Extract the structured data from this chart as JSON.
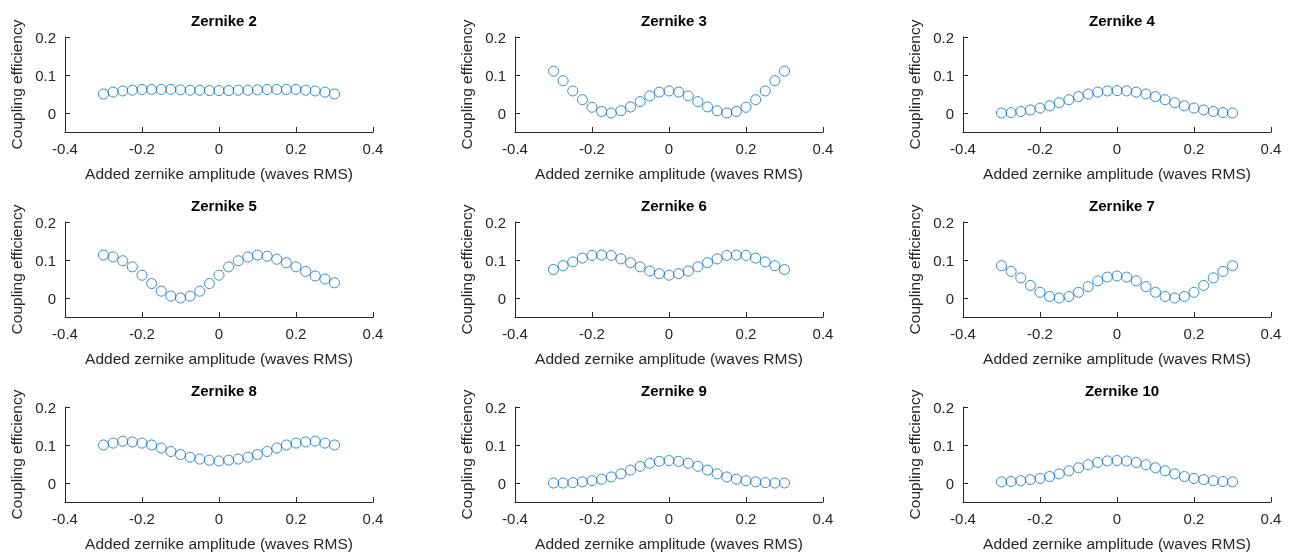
{
  "chart_data": [
    {
      "type": "scatter",
      "title": "Zernike 2",
      "xlabel": "Added zernike amplitude (waves RMS)",
      "ylabel": "Coupling efficiency",
      "color": "#0072bd",
      "marker": "circle",
      "grid": false,
      "xlim": [
        -0.4,
        0.4
      ],
      "ylim": [
        -0.05,
        0.2
      ],
      "xticks": [
        -0.4,
        -0.2,
        0,
        0.2,
        0.4
      ],
      "yticks": [
        0,
        0.1,
        0.2
      ],
      "x": [
        -0.3,
        -0.275,
        -0.25,
        -0.225,
        -0.2,
        -0.175,
        -0.15,
        -0.125,
        -0.1,
        -0.075,
        -0.05,
        -0.025,
        0,
        0.025,
        0.05,
        0.075,
        0.1,
        0.125,
        0.15,
        0.175,
        0.2,
        0.225,
        0.25,
        0.275,
        0.3
      ],
      "values": [
        0.05,
        0.055,
        0.058,
        0.06,
        0.062,
        0.062,
        0.062,
        0.062,
        0.061,
        0.06,
        0.06,
        0.059,
        0.059,
        0.059,
        0.06,
        0.06,
        0.061,
        0.062,
        0.062,
        0.062,
        0.062,
        0.06,
        0.058,
        0.055,
        0.05
      ]
    },
    {
      "type": "scatter",
      "title": "Zernike 3",
      "xlabel": "Added zernike amplitude (waves RMS)",
      "ylabel": "Coupling efficiency",
      "color": "#0072bd",
      "marker": "circle",
      "grid": false,
      "xlim": [
        -0.4,
        0.4
      ],
      "ylim": [
        -0.05,
        0.2
      ],
      "xticks": [
        -0.4,
        -0.2,
        0,
        0.2,
        0.4
      ],
      "yticks": [
        0,
        0.1,
        0.2
      ],
      "x": [
        -0.3,
        -0.275,
        -0.25,
        -0.225,
        -0.2,
        -0.175,
        -0.15,
        -0.125,
        -0.1,
        -0.075,
        -0.05,
        -0.025,
        0,
        0.025,
        0.05,
        0.075,
        0.1,
        0.125,
        0.15,
        0.175,
        0.2,
        0.225,
        0.25,
        0.275,
        0.3
      ],
      "values": [
        0.11,
        0.085,
        0.058,
        0.035,
        0.015,
        0.004,
        0,
        0.006,
        0.016,
        0.03,
        0.045,
        0.055,
        0.058,
        0.055,
        0.045,
        0.03,
        0.016,
        0.006,
        0,
        0.004,
        0.015,
        0.035,
        0.058,
        0.085,
        0.11
      ]
    },
    {
      "type": "scatter",
      "title": "Zernike 4",
      "xlabel": "Added zernike amplitude (waves RMS)",
      "ylabel": "Coupling efficiency",
      "color": "#0072bd",
      "marker": "circle",
      "grid": false,
      "xlim": [
        -0.4,
        0.4
      ],
      "ylim": [
        -0.05,
        0.2
      ],
      "xticks": [
        -0.4,
        -0.2,
        0,
        0.2,
        0.4
      ],
      "yticks": [
        0,
        0.1,
        0.2
      ],
      "x": [
        -0.3,
        -0.275,
        -0.25,
        -0.225,
        -0.2,
        -0.175,
        -0.15,
        -0.125,
        -0.1,
        -0.075,
        -0.05,
        -0.025,
        0,
        0.025,
        0.05,
        0.075,
        0.1,
        0.125,
        0.15,
        0.175,
        0.2,
        0.225,
        0.25,
        0.275,
        0.3
      ],
      "values": [
        0,
        0.001,
        0.004,
        0.008,
        0.013,
        0.019,
        0.027,
        0.035,
        0.043,
        0.05,
        0.055,
        0.058,
        0.059,
        0.058,
        0.055,
        0.05,
        0.043,
        0.035,
        0.027,
        0.019,
        0.013,
        0.008,
        0.004,
        0.001,
        0
      ]
    },
    {
      "type": "scatter",
      "title": "Zernike 5",
      "xlabel": "Added zernike amplitude (waves RMS)",
      "ylabel": "Coupling efficiency",
      "color": "#0072bd",
      "marker": "circle",
      "grid": false,
      "xlim": [
        -0.4,
        0.4
      ],
      "ylim": [
        -0.05,
        0.2
      ],
      "xticks": [
        -0.4,
        -0.2,
        0,
        0.2,
        0.4
      ],
      "yticks": [
        0,
        0.1,
        0.2
      ],
      "x": [
        -0.3,
        -0.275,
        -0.25,
        -0.225,
        -0.2,
        -0.175,
        -0.15,
        -0.125,
        -0.1,
        -0.075,
        -0.05,
        -0.025,
        0,
        0.025,
        0.05,
        0.075,
        0.1,
        0.125,
        0.15,
        0.175,
        0.2,
        0.225,
        0.25,
        0.275,
        0.3
      ],
      "values": [
        0.113,
        0.108,
        0.098,
        0.082,
        0.06,
        0.038,
        0.018,
        0.005,
        0,
        0.005,
        0.018,
        0.038,
        0.06,
        0.082,
        0.098,
        0.108,
        0.113,
        0.11,
        0.102,
        0.093,
        0.082,
        0.07,
        0.058,
        0.05,
        0.04
      ]
    },
    {
      "type": "scatter",
      "title": "Zernike 6",
      "xlabel": "Added zernike amplitude (waves RMS)",
      "ylabel": "Coupling efficiency",
      "color": "#0072bd",
      "marker": "circle",
      "grid": false,
      "xlim": [
        -0.4,
        0.4
      ],
      "ylim": [
        -0.05,
        0.2
      ],
      "xticks": [
        -0.4,
        -0.2,
        0,
        0.2,
        0.4
      ],
      "yticks": [
        0,
        0.1,
        0.2
      ],
      "x": [
        -0.3,
        -0.275,
        -0.25,
        -0.225,
        -0.2,
        -0.175,
        -0.15,
        -0.125,
        -0.1,
        -0.075,
        -0.05,
        -0.025,
        0,
        0.025,
        0.05,
        0.075,
        0.1,
        0.125,
        0.15,
        0.175,
        0.2,
        0.225,
        0.25,
        0.275,
        0.3
      ],
      "values": [
        0.075,
        0.085,
        0.095,
        0.105,
        0.112,
        0.113,
        0.112,
        0.103,
        0.093,
        0.082,
        0.071,
        0.064,
        0.06,
        0.064,
        0.071,
        0.082,
        0.093,
        0.103,
        0.112,
        0.113,
        0.112,
        0.105,
        0.095,
        0.085,
        0.075
      ]
    },
    {
      "type": "scatter",
      "title": "Zernike 7",
      "xlabel": "Added zernike amplitude (waves RMS)",
      "ylabel": "Coupling efficiency",
      "color": "#0072bd",
      "marker": "circle",
      "grid": false,
      "xlim": [
        -0.4,
        0.4
      ],
      "ylim": [
        -0.05,
        0.2
      ],
      "xticks": [
        -0.4,
        -0.2,
        0,
        0.2,
        0.4
      ],
      "yticks": [
        0,
        0.1,
        0.2
      ],
      "x": [
        -0.3,
        -0.275,
        -0.25,
        -0.225,
        -0.2,
        -0.175,
        -0.15,
        -0.125,
        -0.1,
        -0.075,
        -0.05,
        -0.025,
        0,
        0.025,
        0.05,
        0.075,
        0.1,
        0.125,
        0.15,
        0.175,
        0.2,
        0.225,
        0.25,
        0.275,
        0.3
      ],
      "values": [
        0.085,
        0.07,
        0.053,
        0.033,
        0.015,
        0.004,
        0,
        0.004,
        0.015,
        0.03,
        0.045,
        0.055,
        0.058,
        0.055,
        0.045,
        0.03,
        0.015,
        0.004,
        0,
        0.004,
        0.015,
        0.033,
        0.053,
        0.07,
        0.085
      ]
    },
    {
      "type": "scatter",
      "title": "Zernike 8",
      "xlabel": "Added zernike amplitude (waves RMS)",
      "ylabel": "Coupling efficiency",
      "color": "#0072bd",
      "marker": "circle",
      "grid": false,
      "xlim": [
        -0.4,
        0.4
      ],
      "ylim": [
        -0.05,
        0.2
      ],
      "xticks": [
        -0.4,
        -0.2,
        0,
        0.2,
        0.4
      ],
      "yticks": [
        0,
        0.1,
        0.2
      ],
      "x": [
        -0.3,
        -0.275,
        -0.25,
        -0.225,
        -0.2,
        -0.175,
        -0.15,
        -0.125,
        -0.1,
        -0.075,
        -0.05,
        -0.025,
        0,
        0.025,
        0.05,
        0.075,
        0.1,
        0.125,
        0.15,
        0.175,
        0.2,
        0.225,
        0.25,
        0.275,
        0.3
      ],
      "values": [
        0.1,
        0.105,
        0.11,
        0.108,
        0.105,
        0.1,
        0.092,
        0.083,
        0.075,
        0.068,
        0.063,
        0.06,
        0.058,
        0.06,
        0.063,
        0.068,
        0.075,
        0.083,
        0.092,
        0.1,
        0.105,
        0.108,
        0.11,
        0.105,
        0.1
      ]
    },
    {
      "type": "scatter",
      "title": "Zernike 9",
      "xlabel": "Added zernike amplitude (waves RMS)",
      "ylabel": "Coupling efficiency",
      "color": "#0072bd",
      "marker": "circle",
      "grid": false,
      "xlim": [
        -0.4,
        0.4
      ],
      "ylim": [
        -0.05,
        0.2
      ],
      "xticks": [
        -0.4,
        -0.2,
        0,
        0.2,
        0.4
      ],
      "yticks": [
        0,
        0.1,
        0.2
      ],
      "x": [
        -0.3,
        -0.275,
        -0.25,
        -0.225,
        -0.2,
        -0.175,
        -0.15,
        -0.125,
        -0.1,
        -0.075,
        -0.05,
        -0.025,
        0,
        0.025,
        0.05,
        0.075,
        0.1,
        0.125,
        0.15,
        0.175,
        0.2,
        0.225,
        0.25,
        0.275,
        0.3
      ],
      "values": [
        0,
        0,
        0.001,
        0.003,
        0.006,
        0.01,
        0.016,
        0.024,
        0.034,
        0.044,
        0.052,
        0.057,
        0.059,
        0.057,
        0.052,
        0.044,
        0.034,
        0.024,
        0.016,
        0.01,
        0.006,
        0.003,
        0.001,
        0,
        0
      ]
    },
    {
      "type": "scatter",
      "title": "Zernike 10",
      "xlabel": "Added zernike amplitude (waves RMS)",
      "ylabel": "Coupling efficiency",
      "color": "#0072bd",
      "marker": "circle",
      "grid": false,
      "xlim": [
        -0.4,
        0.4
      ],
      "ylim": [
        -0.05,
        0.2
      ],
      "xticks": [
        -0.4,
        -0.2,
        0,
        0.2,
        0.4
      ],
      "yticks": [
        0,
        0.1,
        0.2
      ],
      "x": [
        -0.3,
        -0.275,
        -0.25,
        -0.225,
        -0.2,
        -0.175,
        -0.15,
        -0.125,
        -0.1,
        -0.075,
        -0.05,
        -0.025,
        0,
        0.025,
        0.05,
        0.075,
        0.1,
        0.125,
        0.15,
        0.175,
        0.2,
        0.225,
        0.25,
        0.275,
        0.3
      ],
      "values": [
        0.003,
        0.004,
        0.006,
        0.009,
        0.012,
        0.017,
        0.024,
        0.032,
        0.04,
        0.048,
        0.054,
        0.058,
        0.059,
        0.058,
        0.054,
        0.048,
        0.04,
        0.032,
        0.024,
        0.017,
        0.012,
        0.009,
        0.006,
        0.004,
        0.003
      ]
    }
  ]
}
